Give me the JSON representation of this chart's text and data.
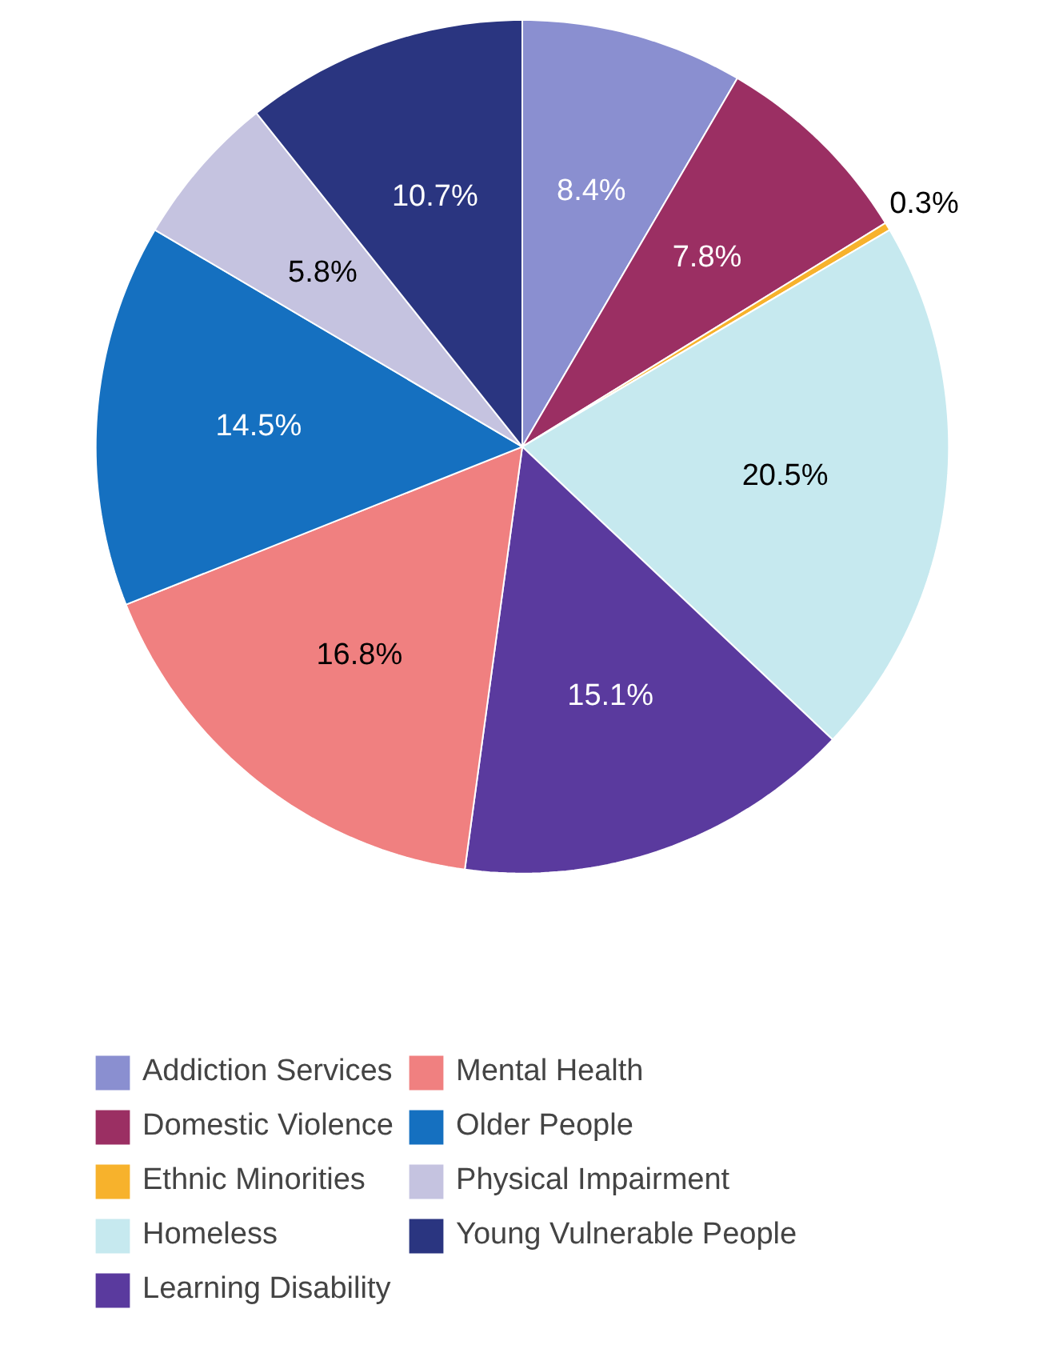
{
  "chart_data": {
    "type": "pie",
    "categories": [
      "Addiction Services",
      "Domestic Violence",
      "Ethnic Minorities",
      "Homeless",
      "Learning Disability",
      "Mental Health",
      "Older People",
      "Physical Impairment",
      "Young Vulnerable People"
    ],
    "values": [
      8.4,
      7.8,
      0.3,
      20.5,
      15.1,
      16.8,
      14.5,
      5.8,
      10.7
    ],
    "colors": [
      "#8a8fd0",
      "#9b2f63",
      "#f7b22c",
      "#c6e9ef",
      "#5a3a9e",
      "#f08080",
      "#1570c0",
      "#c5c3e0",
      "#2a3580"
    ],
    "value_labels": [
      "8.4%",
      "7.8%",
      "0.3%",
      "20.5%",
      "15.1%",
      "16.8%",
      "14.5%",
      "5.8%",
      "10.7%"
    ],
    "legend": "bottom"
  }
}
